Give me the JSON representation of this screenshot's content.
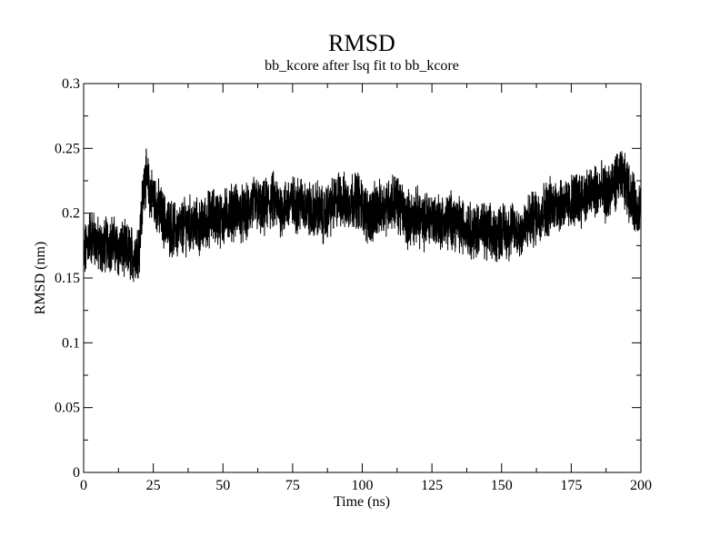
{
  "chart_data": {
    "type": "line",
    "title": "RMSD",
    "subtitle": "bb_kcore after lsq fit to bb_kcore",
    "xlabel": "Time (ns)",
    "ylabel": "RMSD (nm)",
    "xlim": [
      0,
      200
    ],
    "ylim": [
      0,
      0.3
    ],
    "x_ticks": [
      "0",
      "25",
      "50",
      "75",
      "100",
      "125",
      "150",
      "175",
      "200"
    ],
    "y_ticks": [
      "0",
      "0.05",
      "0.1",
      "0.15",
      "0.2",
      "0.25",
      "0.3"
    ],
    "grid": false,
    "line_color": "#000000",
    "series": [
      {
        "x": [
          0,
          2,
          4,
          6,
          8,
          10,
          12,
          14,
          16,
          18,
          20,
          21,
          22,
          24,
          26,
          28,
          30,
          32,
          34,
          36,
          38,
          40,
          42,
          44,
          46,
          48,
          50,
          52,
          54,
          56,
          58,
          60,
          62,
          64,
          66,
          68,
          70,
          72,
          74,
          76,
          78,
          80,
          82,
          84,
          86,
          88,
          90,
          92,
          94,
          96,
          98,
          100,
          102,
          104,
          106,
          108,
          110,
          112,
          114,
          116,
          118,
          120,
          122,
          124,
          126,
          128,
          130,
          132,
          134,
          136,
          138,
          140,
          142,
          144,
          146,
          148,
          150,
          152,
          154,
          156,
          158,
          160,
          162,
          164,
          166,
          168,
          170,
          172,
          174,
          176,
          178,
          180,
          182,
          184,
          186,
          188,
          190,
          192,
          194,
          196,
          198,
          200
        ],
        "y": [
          0.165,
          0.183,
          0.18,
          0.172,
          0.176,
          0.178,
          0.173,
          0.172,
          0.17,
          0.168,
          0.175,
          0.205,
          0.23,
          0.215,
          0.208,
          0.198,
          0.19,
          0.188,
          0.186,
          0.19,
          0.192,
          0.19,
          0.188,
          0.194,
          0.198,
          0.197,
          0.195,
          0.2,
          0.202,
          0.2,
          0.198,
          0.205,
          0.208,
          0.2,
          0.207,
          0.21,
          0.205,
          0.204,
          0.208,
          0.206,
          0.208,
          0.205,
          0.2,
          0.204,
          0.197,
          0.203,
          0.207,
          0.213,
          0.207,
          0.21,
          0.212,
          0.205,
          0.198,
          0.2,
          0.203,
          0.205,
          0.208,
          0.21,
          0.203,
          0.196,
          0.196,
          0.198,
          0.192,
          0.198,
          0.195,
          0.194,
          0.192,
          0.196,
          0.193,
          0.19,
          0.19,
          0.185,
          0.19,
          0.185,
          0.184,
          0.183,
          0.188,
          0.185,
          0.188,
          0.186,
          0.187,
          0.194,
          0.197,
          0.2,
          0.204,
          0.206,
          0.208,
          0.207,
          0.205,
          0.21,
          0.212,
          0.213,
          0.215,
          0.217,
          0.216,
          0.215,
          0.22,
          0.228,
          0.225,
          0.215,
          0.205,
          0.205
        ]
      }
    ]
  }
}
